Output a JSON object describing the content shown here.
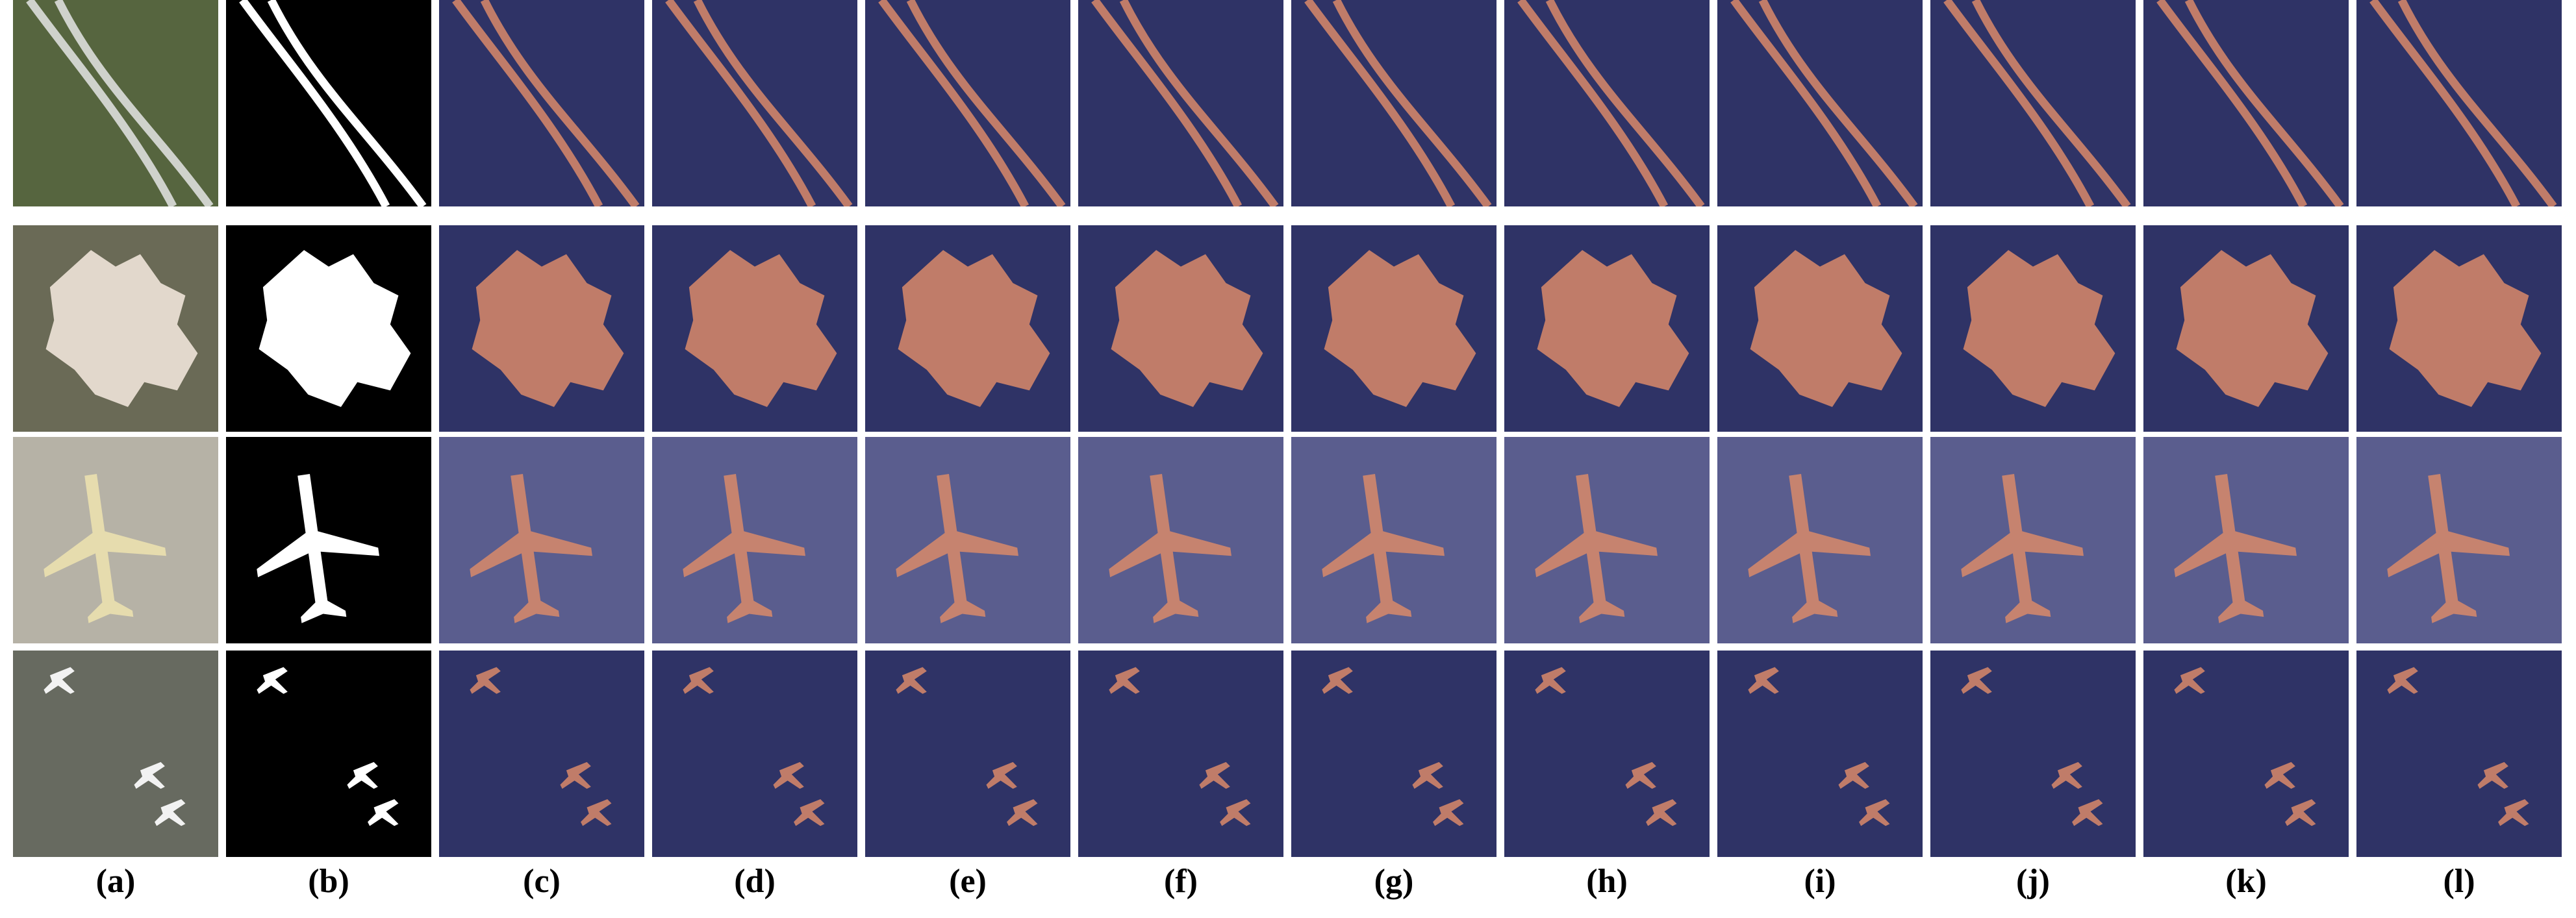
{
  "labels": [
    "(a)",
    "(b)",
    "(c)",
    "(d)",
    "(e)",
    "(f)",
    "(g)",
    "(h)",
    "(i)",
    "(j)",
    "(k)",
    "(l)"
  ]
}
